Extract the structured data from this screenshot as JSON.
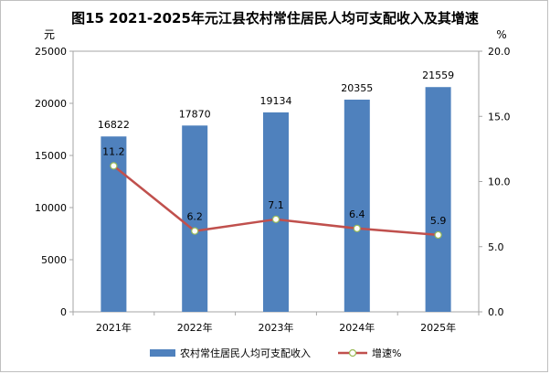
{
  "title": "图15    2021-2025年元江县农村常住居民人均可支配收入及其增速",
  "chart_data": {
    "type": "bar",
    "categories": [
      "2021年",
      "2022年",
      "2023年",
      "2024年",
      "2025年"
    ],
    "series": [
      {
        "name": "农村常住居民人均可支配收入",
        "type": "bar",
        "axis": "left",
        "values": [
          16822,
          17870,
          19134,
          20355,
          21559
        ],
        "color": "#4f81bd"
      },
      {
        "name": "增速%",
        "type": "line",
        "axis": "right",
        "values": [
          11.2,
          6.2,
          7.1,
          6.4,
          5.9
        ],
        "color": "#c0504d"
      }
    ],
    "y_left": {
      "unit": "元",
      "range": [
        0,
        25000
      ],
      "ticks": [
        "0",
        "5000",
        "10000",
        "15000",
        "20000",
        "25000"
      ]
    },
    "y_right": {
      "unit": "%",
      "range": [
        0,
        20
      ],
      "ticks": [
        "0.0",
        "5.0",
        "10.0",
        "15.0",
        "20.0"
      ]
    },
    "bar_labels": [
      "16822",
      "17870",
      "19134",
      "20355",
      "21559"
    ],
    "line_labels": [
      "11.2",
      "6.2",
      "7.1",
      "6.4",
      "5.9"
    ],
    "grid": false,
    "legend_position": "bottom"
  }
}
